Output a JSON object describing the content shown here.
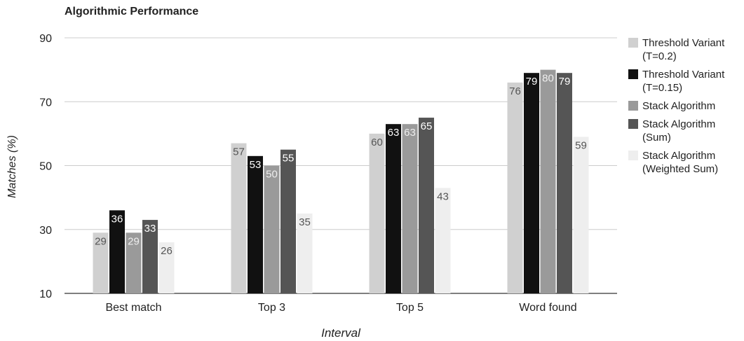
{
  "chart_data": {
    "type": "bar",
    "title": "Algorithmic Performance",
    "xlabel": "Interval",
    "ylabel": "Matches (%)",
    "ylim": [
      10,
      90
    ],
    "yticks": [
      10,
      30,
      50,
      70,
      90
    ],
    "grid": true,
    "legend_position": "right",
    "categories": [
      "Best match",
      "Top 3",
      "Top 5",
      "Word found"
    ],
    "series": [
      {
        "name": "Threshold Variant\n(T=0.2)",
        "color": "#d0d0d0",
        "label_color": "#555555",
        "values": [
          29,
          57,
          60,
          76
        ]
      },
      {
        "name": "Threshold Variant\n(T=0.15)",
        "color": "#111111",
        "label_color": "#ffffff",
        "values": [
          36,
          53,
          63,
          79
        ]
      },
      {
        "name": "Stack Algorithm",
        "color": "#9a9a9a",
        "label_color": "#eeeeee",
        "values": [
          29,
          50,
          63,
          80
        ]
      },
      {
        "name": "Stack Algorithm\n(Sum)",
        "color": "#555555",
        "label_color": "#ffffff",
        "values": [
          33,
          55,
          65,
          79
        ]
      },
      {
        "name": "Stack Algorithm\n(Weighted Sum)",
        "color": "#eeeeee",
        "label_color": "#555555",
        "values": [
          26,
          35,
          43,
          59
        ]
      }
    ]
  }
}
